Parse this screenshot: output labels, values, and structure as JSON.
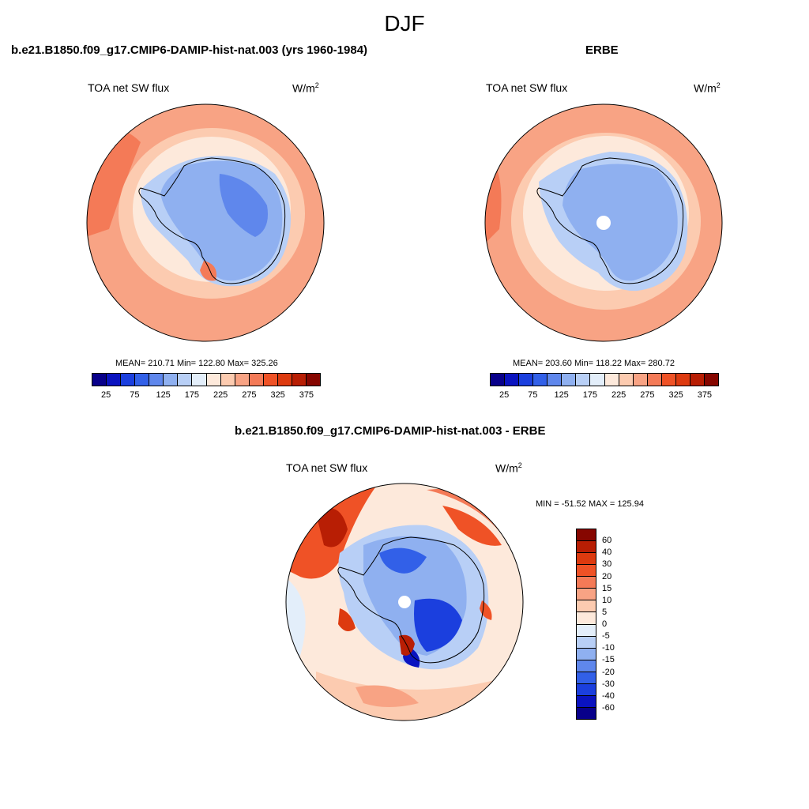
{
  "title": "DJF",
  "panels": {
    "model": {
      "case_title": "b.e21.B1850.f09_g17.CMIP6-DAMIP-hist-nat.003 (yrs 1960-1984)",
      "variable": "TOA net SW flux",
      "units": "W/m",
      "units_sup": "2",
      "stats": "MEAN= 210.71  Min= 122.80  Max= 325.26"
    },
    "obs": {
      "case_title": "ERBE",
      "variable": "TOA net SW flux",
      "units": "W/m",
      "units_sup": "2",
      "stats": "MEAN= 203.60  Min= 118.22  Max= 280.72"
    },
    "diff": {
      "case_title": "b.e21.B1850.f09_g17.CMIP6-DAMIP-hist-nat.003 - ERBE",
      "variable": "TOA net SW flux",
      "units": "W/m",
      "units_sup": "2",
      "stats": "MIN = -51.52 MAX = 125.94"
    }
  },
  "colorbars": {
    "main": {
      "colors": [
        "#08008a",
        "#0a13c0",
        "#1b3fde",
        "#3260e8",
        "#5f87ec",
        "#8fb0f0",
        "#b8cff6",
        "#e3eefa",
        "#fde9db",
        "#fccbb0",
        "#f8a384",
        "#f47a57",
        "#ef5226",
        "#dd3a0f",
        "#b81e04",
        "#860600"
      ],
      "tick_labels": [
        "25",
        "75",
        "125",
        "175",
        "225",
        "275",
        "325",
        "375"
      ]
    },
    "diff": {
      "colors": [
        "#860600",
        "#b81e04",
        "#dd3a0f",
        "#ef5226",
        "#f47a57",
        "#f8a384",
        "#fccbb0",
        "#fde9db",
        "#e3eefa",
        "#b8cff6",
        "#8fb0f0",
        "#5f87ec",
        "#3260e8",
        "#1b3fde",
        "#0a13c0",
        "#08008a"
      ],
      "tick_labels": [
        "60",
        "40",
        "30",
        "20",
        "15",
        "10",
        "5",
        "0",
        "-5",
        "-10",
        "-15",
        "-20",
        "-30",
        "-40",
        "-60"
      ]
    }
  }
}
